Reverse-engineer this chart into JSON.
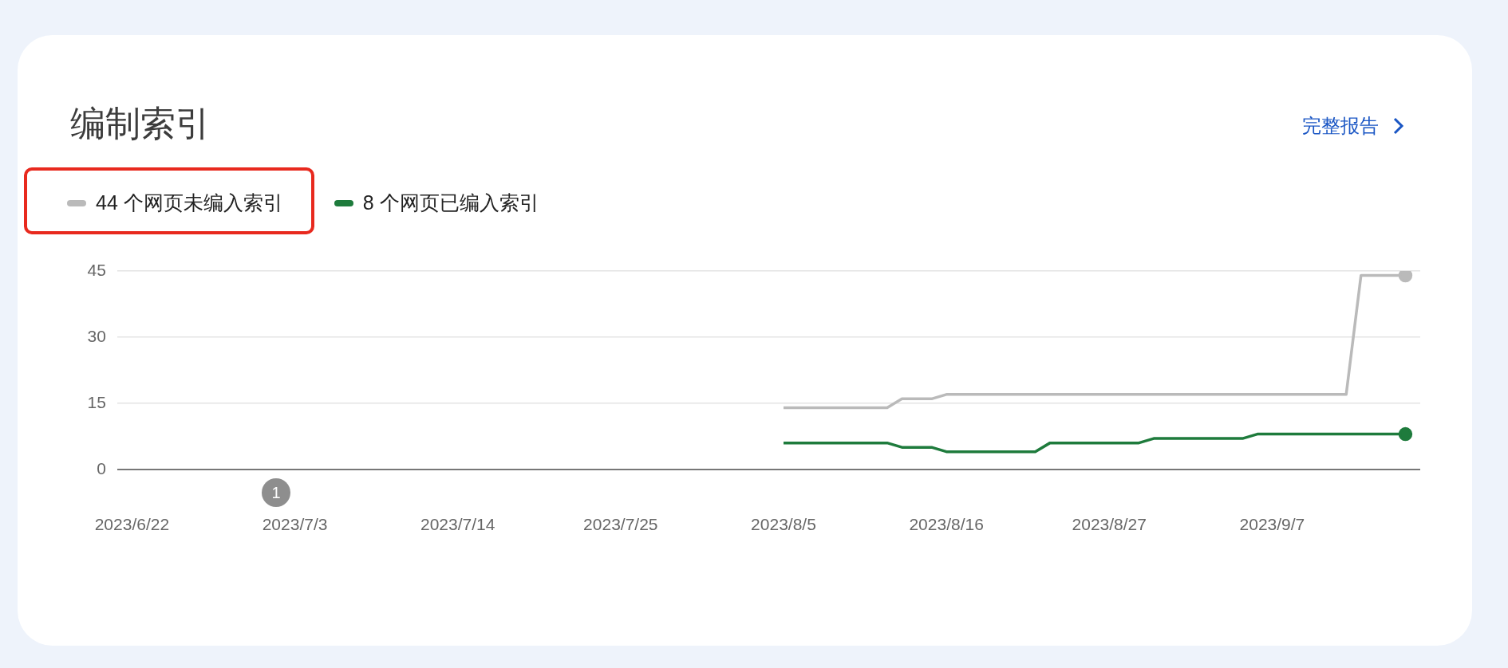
{
  "chart_data": {
    "type": "line",
    "title": "编制索引",
    "annotations": [
      "完整报告",
      "1"
    ],
    "series": [
      {
        "name": "44 个网页未编入索引",
        "color": "#bababa",
        "x": [
          "2023-08-05",
          "2023-08-12",
          "2023-08-13",
          "2023-08-15",
          "2023-08-16",
          "2023-09-12",
          "2023-09-13",
          "2023-09-16"
        ],
        "values": [
          14,
          14,
          16,
          16,
          17,
          17,
          44,
          44
        ]
      },
      {
        "name": "8 个网页已编入索引",
        "color": "#1e7b3c",
        "x": [
          "2023-08-05",
          "2023-08-12",
          "2023-08-13",
          "2023-08-15",
          "2023-08-16",
          "2023-08-22",
          "2023-08-23",
          "2023-08-29",
          "2023-08-30",
          "2023-09-05",
          "2023-09-06",
          "2023-09-16"
        ],
        "values": [
          6,
          6,
          5,
          5,
          4,
          4,
          6,
          6,
          7,
          7,
          8,
          8
        ]
      }
    ],
    "xlim": [
      "2023-06-21",
      "2023-09-17"
    ],
    "xticks": [
      {
        "value": "2023-06-22",
        "label": "2023/6/22"
      },
      {
        "value": "2023-07-03",
        "label": "2023/7/3"
      },
      {
        "value": "2023-07-14",
        "label": "2023/7/14"
      },
      {
        "value": "2023-07-25",
        "label": "2023/7/25"
      },
      {
        "value": "2023-08-05",
        "label": "2023/8/5"
      },
      {
        "value": "2023-08-16",
        "label": "2023/8/16"
      },
      {
        "value": "2023-08-27",
        "label": "2023/8/27"
      },
      {
        "value": "2023-09-07",
        "label": "2023/9/7"
      }
    ],
    "ylim": [
      0,
      45
    ],
    "yticks": [
      0,
      15,
      30,
      45
    ],
    "grid": "y",
    "legend": "top left",
    "line_style": "solid"
  }
}
